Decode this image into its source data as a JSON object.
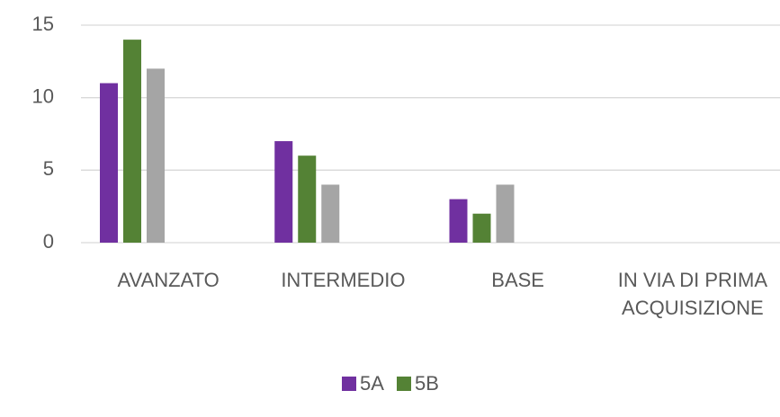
{
  "chart_data": {
    "type": "bar",
    "categories": [
      "AVANZATO",
      "INTERMEDIO",
      "BASE",
      "IN VIA DI PRIMA ACQUISIZIONE"
    ],
    "series": [
      {
        "name": "5A",
        "color": "#7030a0",
        "values": [
          11,
          7,
          3,
          0
        ]
      },
      {
        "name": "5B",
        "color": "#548235",
        "values": [
          14,
          6,
          2,
          0
        ]
      },
      {
        "color": "#a5a5a5",
        "values": [
          12,
          4,
          4,
          0
        ]
      }
    ],
    "ylim": [
      0,
      15
    ],
    "yticks": [
      0,
      5,
      10,
      15
    ],
    "grid": true,
    "legend": "bottom"
  }
}
